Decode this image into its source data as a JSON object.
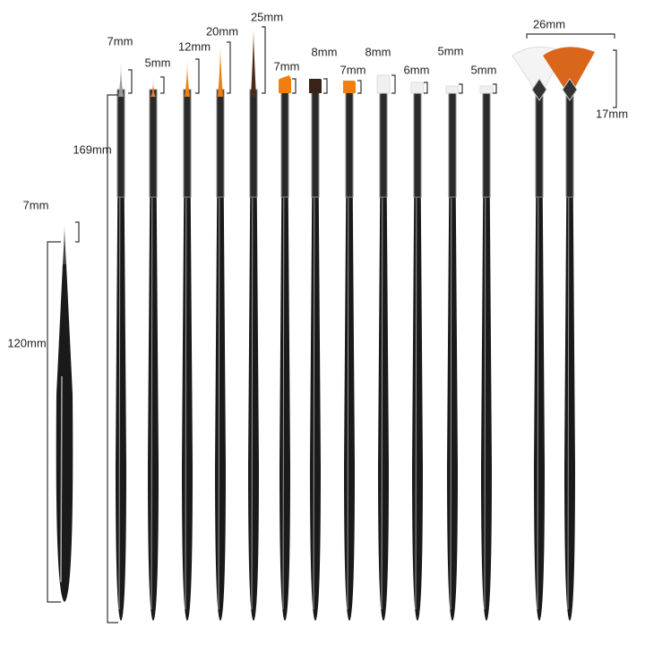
{
  "labels": {
    "short_brush_tip": "7mm",
    "short_brush_length": "120mm",
    "long_brush_length": "169mm",
    "tips": [
      "7mm",
      "5mm",
      "12mm",
      "20mm",
      "25mm",
      "7mm",
      "8mm",
      "7mm",
      "8mm",
      "6mm",
      "5mm",
      "5mm"
    ],
    "fan_width": "26mm",
    "fan_height": "17mm"
  },
  "brushes": [
    {
      "type": "liner",
      "color": "#9a9a9a"
    },
    {
      "type": "liner",
      "color": "#e8822a"
    },
    {
      "type": "liner",
      "color": "#f07f10"
    },
    {
      "type": "liner",
      "color": "#f07f10"
    },
    {
      "type": "liner",
      "color": "#4a2a18"
    },
    {
      "type": "flat-angled",
      "color": "#f07f10"
    },
    {
      "type": "flat",
      "color": "#3a2218"
    },
    {
      "type": "flat-round",
      "color": "#f07f10"
    },
    {
      "type": "flat",
      "color": "#f0f0f0"
    },
    {
      "type": "flat",
      "color": "#f0f0f0"
    },
    {
      "type": "flat",
      "color": "#f0f0f0"
    },
    {
      "type": "flat",
      "color": "#f0f0f0"
    },
    {
      "type": "fan",
      "color": "#f4f4f4"
    },
    {
      "type": "fan",
      "color": "#d9661a"
    }
  ],
  "short_brush": {
    "type": "liner",
    "color": "#444444"
  },
  "colors": {
    "handle": "#1a1a1a",
    "ferrule": "#8a8a8a",
    "dimension_line": "#333333"
  }
}
